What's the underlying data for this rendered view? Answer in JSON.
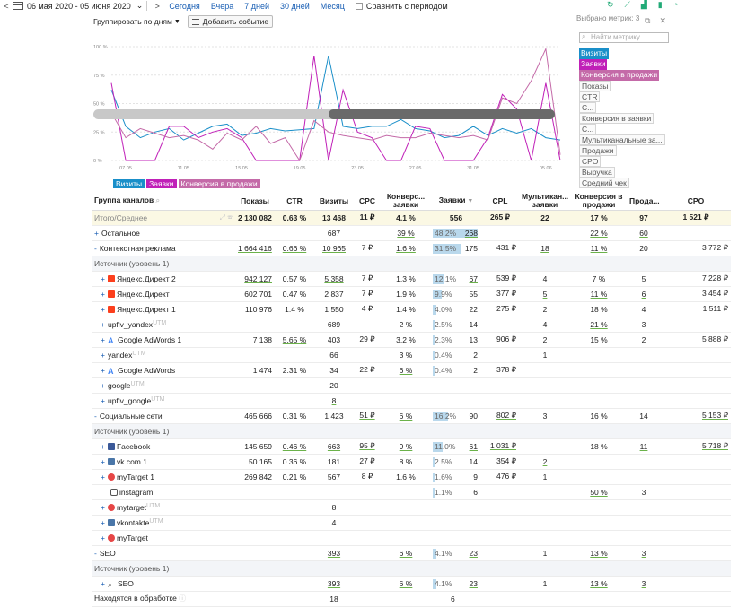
{
  "topbar": {
    "prev": "<",
    "date_range": "06 мая 2020 - 05 июня 2020",
    "dropdown": "⌄",
    "next": ">",
    "links": [
      "Сегодня",
      "Вчера",
      "7 дней",
      "30 дней",
      "Месяц"
    ],
    "compare_label": "Сравнить с периодом"
  },
  "group": {
    "label": "Группировать по дням",
    "add_event": "Добавить событие"
  },
  "colors": {
    "visits": "#1a8fc9",
    "leads": "#c020b8",
    "conv": "#c46aa8"
  },
  "chart_data": {
    "type": "line",
    "y_ticks": [
      "100 %",
      "75 %",
      "50 %",
      "25 %",
      "0 %"
    ],
    "ylim": [
      0,
      100
    ],
    "x_ticks": [
      "07.05",
      "11.05",
      "15.05",
      "19.05",
      "23.05",
      "27.05",
      "31.05",
      "05.06"
    ],
    "x_tick_index": [
      1,
      5,
      9,
      13,
      17,
      21,
      25,
      30
    ],
    "series": [
      {
        "name": "Визиты",
        "values": [
          62,
          30,
          20,
          25,
          28,
          18,
          24,
          30,
          32,
          22,
          24,
          28,
          26,
          27,
          28,
          92,
          30,
          28,
          30,
          30,
          36,
          28,
          26,
          20,
          22,
          30,
          22,
          28,
          24,
          28,
          20,
          18
        ]
      },
      {
        "name": "Заявки",
        "values": [
          68,
          0,
          0,
          0,
          30,
          30,
          20,
          25,
          28,
          20,
          0,
          0,
          0,
          0,
          92,
          0,
          62,
          25,
          20,
          0,
          0,
          30,
          28,
          0,
          0,
          0,
          20,
          58,
          45,
          0,
          68,
          0
        ]
      },
      {
        "name": "Конверсия в продажи",
        "values": [
          42,
          20,
          28,
          24,
          20,
          22,
          18,
          10,
          24,
          18,
          30,
          15,
          20,
          0,
          35,
          25,
          22,
          20,
          18,
          22,
          20,
          20,
          24,
          22,
          20,
          22,
          18,
          55,
          50,
          70,
          98,
          5
        ]
      }
    ]
  },
  "chips": [
    {
      "label": "Визиты",
      "color": "#1a8fc9"
    },
    {
      "label": "Заявки",
      "color": "#c020b8"
    },
    {
      "label": "Конверсия в продажи",
      "color": "#c46aa8"
    }
  ],
  "metrics": {
    "header": "Выбрано метрик: 3",
    "search_placeholder": "Найти метрику",
    "selected": [
      {
        "label": "Визиты",
        "color": "#1a8fc9"
      },
      {
        "label": "Заявки",
        "color": "#c020b8"
      },
      {
        "label": "Конверсия в продажи",
        "color": "#c46aa8"
      }
    ],
    "others": [
      "Показы",
      "CTR",
      "С...",
      "Конверсия в заявки",
      "С...",
      "Мультиканальные за...",
      "Продажи",
      "CPO",
      "Выручка",
      "Средний чек"
    ]
  },
  "table": {
    "headers": [
      "Группа каналов",
      "Показы",
      "CTR",
      "Визиты",
      "CPC",
      "Конверсия в заявки",
      "Заявки",
      "CPL",
      "Мультиканальные заявки",
      "Конверсия в продажи",
      "Продажи",
      "CPO"
    ],
    "headers_short": [
      "Группа каналов",
      "Показы",
      "CTR",
      "Визиты",
      "CPC",
      "Конверс... заявки",
      "Заявки",
      "CPL",
      "Мультикан... заявки",
      "Конверсия в продажи",
      "Прода...",
      "CPO"
    ],
    "total": {
      "label": "Итого/Среднее",
      "shows": "2 130 082",
      "ctr": "0.63 %",
      "visits": "13 468",
      "cpc": "11 ₽",
      "conv_leads": "4.1 %",
      "leads": "556",
      "cpl": "265 ₽",
      "multi": "22",
      "conv_sales": "17 %",
      "sales": "97",
      "cpo": "1 521 ₽"
    },
    "rows": [
      {
        "type": "group",
        "label": "Остальное",
        "marker": "+",
        "shows": "",
        "ctr": "",
        "visits": "687",
        "cpc": "",
        "conv_leads": "39 %",
        "leads_pct": "48.2%",
        "leads": "268",
        "bar": 48,
        "cpl": "",
        "multi": "",
        "conv_sales": "22 %",
        "sales": "60",
        "cpo": ""
      },
      {
        "type": "group",
        "label": "Контекстная реклама",
        "marker": "-",
        "shows": "1 664 416",
        "ctr": "0.66 %",
        "visits": "10 965",
        "cpc": "7 ₽",
        "conv_leads": "1.6 %",
        "leads_pct": "31.5%",
        "leads": "175",
        "bar": 31,
        "cpl": "431 ₽",
        "multi": "18",
        "conv_sales": "11 %",
        "sales": "20",
        "cpo": "3 772 ₽"
      },
      {
        "type": "src",
        "label": "Источник (уровень 1)"
      },
      {
        "type": "item",
        "icon": "yd",
        "label": "Яндекс.Директ 2",
        "shows": "942 127",
        "ctr": "0.57 %",
        "visits": "5 358",
        "cpc": "7 ₽",
        "conv_leads": "1.3 %",
        "leads_pct": "12.1%",
        "leads": "67",
        "bar": 12,
        "cpl": "539 ₽",
        "multi": "4",
        "conv_sales": "7 %",
        "sales": "5",
        "cpo": "7 228 ₽"
      },
      {
        "type": "item",
        "icon": "yd",
        "label": "Яндекс.Директ",
        "shows": "602 701",
        "ctr": "0.47 %",
        "visits": "2 837",
        "cpc": "7 ₽",
        "conv_leads": "1.9 %",
        "leads_pct": "9.9%",
        "leads": "55",
        "bar": 10,
        "cpl": "377 ₽",
        "multi": "5",
        "conv_sales": "11 %",
        "sales": "6",
        "cpo": "3 454 ₽"
      },
      {
        "type": "item",
        "icon": "yd",
        "label": "Яндекс.Директ 1",
        "shows": "110 976",
        "ctr": "1.4 %",
        "visits": "1 550",
        "cpc": "4 ₽",
        "conv_leads": "1.4 %",
        "leads_pct": "4.0%",
        "leads": "22",
        "bar": 4,
        "cpl": "275 ₽",
        "multi": "2",
        "conv_sales": "18 %",
        "sales": "4",
        "cpo": "1 511 ₽"
      },
      {
        "type": "item",
        "icon": "",
        "label": "upflv_yandex",
        "utm": "UTM",
        "shows": "",
        "ctr": "",
        "visits": "689",
        "cpc": "",
        "conv_leads": "2 %",
        "leads_pct": "2.5%",
        "leads": "14",
        "bar": 2.5,
        "cpl": "",
        "multi": "4",
        "conv_sales": "21 %",
        "sales": "3",
        "cpo": ""
      },
      {
        "type": "item",
        "icon": "ga",
        "label": "Google AdWords 1",
        "shows": "7 138",
        "ctr": "5.65 %",
        "visits": "403",
        "cpc": "29 ₽",
        "conv_leads": "3.2 %",
        "leads_pct": "2.3%",
        "leads": "13",
        "bar": 2.3,
        "cpl": "906 ₽",
        "multi": "2",
        "conv_sales": "15 %",
        "sales": "2",
        "cpo": "5 888 ₽"
      },
      {
        "type": "item",
        "icon": "",
        "label": "yandex",
        "utm": "UTM",
        "shows": "",
        "ctr": "",
        "visits": "66",
        "cpc": "",
        "conv_leads": "3 %",
        "leads_pct": "0.4%",
        "leads": "2",
        "bar": 0.4,
        "cpl": "",
        "multi": "1",
        "conv_sales": "",
        "sales": "",
        "cpo": ""
      },
      {
        "type": "item",
        "icon": "ga",
        "label": "Google AdWords",
        "shows": "1 474",
        "ctr": "2.31 %",
        "visits": "34",
        "cpc": "22 ₽",
        "conv_leads": "6 %",
        "leads_pct": "0.4%",
        "leads": "2",
        "bar": 0.4,
        "cpl": "378 ₽",
        "multi": "",
        "conv_sales": "",
        "sales": "",
        "cpo": ""
      },
      {
        "type": "item",
        "icon": "",
        "label": "google",
        "utm": "UTM",
        "shows": "",
        "ctr": "",
        "visits": "20",
        "cpc": "",
        "conv_leads": "",
        "leads_pct": "",
        "leads": "",
        "bar": 0,
        "cpl": "",
        "multi": "",
        "conv_sales": "",
        "sales": "",
        "cpo": ""
      },
      {
        "type": "item",
        "icon": "",
        "label": "upflv_google",
        "utm": "UTM",
        "shows": "",
        "ctr": "",
        "visits": "8",
        "cpc": "",
        "conv_leads": "",
        "leads_pct": "",
        "leads": "",
        "bar": 0,
        "cpl": "",
        "multi": "",
        "conv_sales": "",
        "sales": "",
        "cpo": ""
      },
      {
        "type": "group",
        "label": "Социальные сети",
        "marker": "-",
        "shows": "465 666",
        "ctr": "0.31 %",
        "visits": "1 423",
        "cpc": "51 ₽",
        "conv_leads": "6 %",
        "leads_pct": "16.2%",
        "leads": "90",
        "bar": 16,
        "cpl": "802 ₽",
        "multi": "3",
        "conv_sales": "16 %",
        "sales": "14",
        "cpo": "5 153 ₽"
      },
      {
        "type": "src",
        "label": "Источник (уровень 1)"
      },
      {
        "type": "item",
        "icon": "fb",
        "label": "Facebook",
        "shows": "145 659",
        "ctr": "0.46 %",
        "visits": "663",
        "cpc": "95 ₽",
        "conv_leads": "9 %",
        "leads_pct": "11.0%",
        "leads": "61",
        "bar": 11,
        "cpl": "1 031 ₽",
        "multi": "",
        "conv_sales": "18 %",
        "sales": "11",
        "cpo": "5 718 ₽"
      },
      {
        "type": "item",
        "icon": "vk",
        "label": "vk.com 1",
        "shows": "50 165",
        "ctr": "0.36 %",
        "visits": "181",
        "cpc": "27 ₽",
        "conv_leads": "8 %",
        "leads_pct": "2.5%",
        "leads": "14",
        "bar": 2.5,
        "cpl": "354 ₽",
        "multi": "2",
        "conv_sales": "",
        "sales": "",
        "cpo": ""
      },
      {
        "type": "item",
        "icon": "mt",
        "label": "myTarget 1",
        "shows": "269 842",
        "ctr": "0.21 %",
        "visits": "567",
        "cpc": "8 ₽",
        "conv_leads": "1.6 %",
        "leads_pct": "1.6%",
        "leads": "9",
        "bar": 1.6,
        "cpl": "476 ₽",
        "multi": "1",
        "conv_sales": "",
        "sales": "",
        "cpo": ""
      },
      {
        "type": "item",
        "icon": "ig",
        "label": "instagram",
        "shows": "",
        "ctr": "",
        "visits": "",
        "cpc": "",
        "conv_leads": "",
        "leads_pct": "1.1%",
        "leads": "6",
        "bar": 1.1,
        "cpl": "",
        "multi": "",
        "conv_sales": "50 %",
        "sales": "3",
        "cpo": ""
      },
      {
        "type": "item",
        "icon": "mt",
        "label": "mytarget",
        "utm": "UTM",
        "shows": "",
        "ctr": "",
        "visits": "8",
        "cpc": "",
        "conv_leads": "",
        "leads_pct": "",
        "leads": "",
        "bar": 0,
        "cpl": "",
        "multi": "",
        "conv_sales": "",
        "sales": "",
        "cpo": ""
      },
      {
        "type": "item",
        "icon": "vk",
        "label": "vkontakte",
        "utm": "UTM",
        "shows": "",
        "ctr": "",
        "visits": "4",
        "cpc": "",
        "conv_leads": "",
        "leads_pct": "",
        "leads": "",
        "bar": 0,
        "cpl": "",
        "multi": "",
        "conv_sales": "",
        "sales": "",
        "cpo": ""
      },
      {
        "type": "item",
        "icon": "mt",
        "label": "myTarget",
        "shows": "",
        "ctr": "",
        "visits": "",
        "cpc": "",
        "conv_leads": "",
        "leads_pct": "",
        "leads": "",
        "bar": 0,
        "cpl": "",
        "multi": "",
        "conv_sales": "",
        "sales": "",
        "cpo": ""
      },
      {
        "type": "group",
        "label": "SEO",
        "marker": "-",
        "shows": "",
        "ctr": "",
        "visits": "393",
        "cpc": "",
        "conv_leads": "6 %",
        "leads_pct": "4.1%",
        "leads": "23",
        "bar": 4.1,
        "cpl": "",
        "multi": "1",
        "conv_sales": "13 %",
        "sales": "3",
        "cpo": ""
      },
      {
        "type": "src",
        "label": "Источник (уровень 1)"
      },
      {
        "type": "item",
        "icon": "mg",
        "label": "SEO",
        "shows": "",
        "ctr": "",
        "visits": "393",
        "cpc": "",
        "conv_leads": "6 %",
        "leads_pct": "4.1%",
        "leads": "23",
        "bar": 4.1,
        "cpl": "",
        "multi": "1",
        "conv_sales": "13 %",
        "sales": "3",
        "cpo": ""
      },
      {
        "type": "group",
        "label": "Находятся в обработке",
        "marker": "",
        "shows": "",
        "ctr": "",
        "visits": "18",
        "cpc": "",
        "conv_leads": "",
        "leads_pct": "",
        "leads": "6",
        "bar": 0,
        "cpl": "",
        "multi": "",
        "conv_sales": "",
        "sales": "",
        "cpo": ""
      }
    ]
  }
}
